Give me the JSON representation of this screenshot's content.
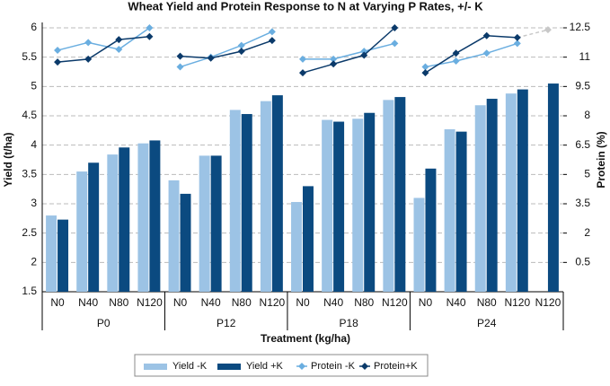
{
  "chart_data": {
    "type": "bar-line",
    "title": "Wheat Yield and Protein Response to N at Varying P Rates, +/- K",
    "x_label": "Treatment (kg/ha)",
    "y_label": "Yield (t/ha)",
    "y2_label": "Protein (%)",
    "categories": [
      "N0",
      "N40",
      "N80",
      "N120",
      "N0",
      "N40",
      "N80",
      "N120",
      "N0",
      "N40",
      "N80",
      "N120",
      "N0",
      "N40",
      "N80",
      "N120",
      "N120"
    ],
    "groups": [
      {
        "name": "P0",
        "size": 4
      },
      {
        "name": "P12",
        "size": 4
      },
      {
        "name": "P18",
        "size": 4
      },
      {
        "name": "P24",
        "size": 5
      }
    ],
    "series": [
      {
        "name": "Yield -K",
        "type": "bar",
        "color": "#9cc3e5",
        "values": [
          2.8,
          3.55,
          3.84,
          4.03,
          3.4,
          3.82,
          4.6,
          4.75,
          3.03,
          4.43,
          4.45,
          4.77,
          3.1,
          4.27,
          4.68,
          4.88,
          null
        ]
      },
      {
        "name": "Yield +K",
        "type": "bar",
        "color": "#0b4a80",
        "values": [
          2.73,
          3.7,
          3.96,
          4.08,
          3.17,
          3.82,
          4.53,
          4.85,
          3.3,
          4.4,
          4.55,
          4.82,
          3.6,
          4.23,
          4.79,
          4.95,
          5.05
        ]
      },
      {
        "name": "Protein -K",
        "type": "line",
        "axis": "y2",
        "color": "#6aaee0",
        "values": [
          11.35,
          11.75,
          11.4,
          12.5,
          10.5,
          11.0,
          11.6,
          12.3,
          10.9,
          10.9,
          11.3,
          11.7,
          10.5,
          10.8,
          11.2,
          11.7,
          null
        ]
      },
      {
        "name": "Protein+K",
        "type": "line",
        "axis": "y2",
        "color": "#0b3a6a",
        "values": [
          10.75,
          10.9,
          11.9,
          12.05,
          11.05,
          10.95,
          11.3,
          11.85,
          10.2,
          10.65,
          11.1,
          12.5,
          10.2,
          11.2,
          12.1,
          12.0,
          12.4
        ],
        "point_colors": [
          null,
          null,
          null,
          null,
          null,
          null,
          null,
          null,
          null,
          null,
          null,
          null,
          null,
          null,
          null,
          null,
          "#c8c8c8"
        ]
      }
    ],
    "ylim": [
      1.5,
      6.0
    ],
    "yticks": [
      1.5,
      2.0,
      2.5,
      3.0,
      3.5,
      4.0,
      4.5,
      5.0,
      5.5,
      6.0
    ],
    "y2lim": [
      -1,
      12.5
    ],
    "y2ticks": [
      0.5,
      2.0,
      3.5,
      5.0,
      6.5,
      8.0,
      9.5,
      11.0,
      12.5
    ],
    "grid": true
  }
}
